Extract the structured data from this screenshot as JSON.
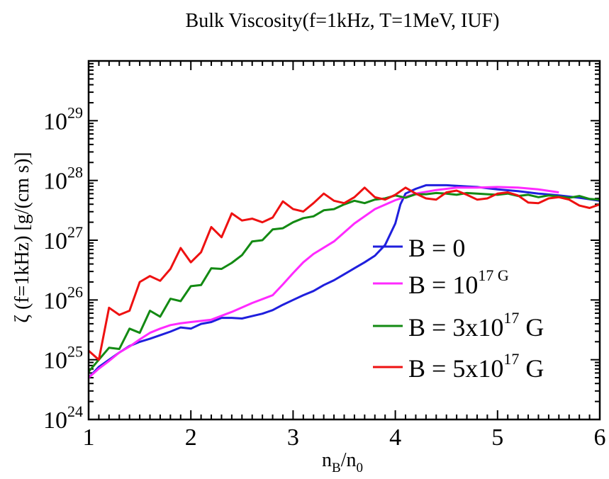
{
  "chart_data": {
    "type": "line",
    "title": "Bulk Viscosity(f=1kHz, T=1MeV, IUF)",
    "xlabel": {
      "main": "n",
      "sub1": "B",
      "slash": "/n",
      "sub2": "0"
    },
    "ylabel": "ζ (f=1kHz) [g/(cm s)]",
    "xlim": [
      1,
      6
    ],
    "ylim_log10": [
      24,
      30
    ],
    "yscale": "log",
    "x_ticks": [
      {
        "value": 1,
        "label": "1"
      },
      {
        "value": 2,
        "label": "2"
      },
      {
        "value": 3,
        "label": "3"
      },
      {
        "value": 4,
        "label": "4"
      },
      {
        "value": 5,
        "label": "5"
      },
      {
        "value": 6,
        "label": "6"
      }
    ],
    "y_ticks": [
      {
        "exp": 24,
        "base": "10",
        "sup": "24"
      },
      {
        "exp": 25,
        "base": "10",
        "sup": "25"
      },
      {
        "exp": 26,
        "base": "10",
        "sup": "26"
      },
      {
        "exp": 27,
        "base": "10",
        "sup": "27"
      },
      {
        "exp": 28,
        "base": "10",
        "sup": "28"
      },
      {
        "exp": 29,
        "base": "10",
        "sup": "29"
      }
    ],
    "legend": {
      "placement": "lower-right",
      "entries": [
        {
          "series": 0,
          "prefix": "B = 0",
          "sup": "",
          "suffix": ""
        },
        {
          "series": 1,
          "prefix": "B = 10",
          "sup": "17 G",
          "suffix": ""
        },
        {
          "series": 2,
          "prefix": "B = 3x10",
          "sup": "17",
          "suffix": " G"
        },
        {
          "series": 3,
          "prefix": "B = 5x10",
          "sup": "17",
          "suffix": " G"
        }
      ]
    },
    "series": [
      {
        "name": "B = 0",
        "color": "#1f1fdd",
        "x": [
          1.0,
          1.1,
          1.2,
          1.3,
          1.4,
          1.5,
          1.6,
          1.7,
          1.8,
          1.9,
          2.0,
          2.1,
          2.2,
          2.3,
          2.4,
          2.5,
          2.6,
          2.7,
          2.8,
          2.9,
          3.0,
          3.1,
          3.2,
          3.3,
          3.4,
          3.5,
          3.6,
          3.7,
          3.8,
          3.9,
          4.0,
          4.05,
          4.1,
          4.2,
          4.3,
          4.4,
          4.5,
          4.6,
          4.7,
          4.8,
          4.9,
          5.0,
          5.2,
          5.4,
          5.6,
          5.8,
          6.0
        ],
        "log10_y": [
          24.7,
          24.88,
          25.0,
          25.12,
          25.23,
          25.3,
          25.35,
          25.41,
          25.47,
          25.54,
          25.52,
          25.6,
          25.63,
          25.7,
          25.7,
          25.69,
          25.73,
          25.77,
          25.83,
          25.92,
          26.0,
          26.08,
          26.15,
          26.25,
          26.33,
          26.43,
          26.53,
          26.63,
          26.74,
          26.92,
          27.28,
          27.6,
          27.78,
          27.86,
          27.92,
          27.92,
          27.92,
          27.91,
          27.9,
          27.89,
          27.87,
          27.85,
          27.82,
          27.78,
          27.75,
          27.71,
          27.66
        ]
      },
      {
        "name": "B = 10^17 G",
        "color": "#ff2aff",
        "x": [
          1.0,
          1.1,
          1.2,
          1.3,
          1.4,
          1.5,
          1.6,
          1.7,
          1.8,
          1.9,
          2.0,
          2.1,
          2.2,
          2.4,
          2.6,
          2.8,
          2.9,
          3.0,
          3.1,
          3.2,
          3.4,
          3.6,
          3.8,
          4.0,
          4.2,
          4.4,
          4.6,
          4.8,
          5.0,
          5.2,
          5.4,
          5.6
        ],
        "log10_y": [
          24.7,
          24.85,
          24.98,
          25.12,
          25.22,
          25.34,
          25.45,
          25.52,
          25.58,
          25.61,
          25.63,
          25.65,
          25.67,
          25.8,
          25.95,
          26.08,
          26.26,
          26.45,
          26.63,
          26.77,
          26.98,
          27.28,
          27.52,
          27.67,
          27.78,
          27.84,
          27.88,
          27.88,
          27.89,
          27.88,
          27.85,
          27.8
        ]
      },
      {
        "name": "B = 3x10^17 G",
        "color": "#138a13",
        "x": [
          1.0,
          1.1,
          1.2,
          1.3,
          1.4,
          1.5,
          1.6,
          1.7,
          1.8,
          1.9,
          2.0,
          2.1,
          2.2,
          2.3,
          2.4,
          2.5,
          2.6,
          2.7,
          2.8,
          2.9,
          3.0,
          3.1,
          3.2,
          3.3,
          3.4,
          3.5,
          3.6,
          3.7,
          3.8,
          3.9,
          4.0,
          4.1,
          4.2,
          4.3,
          4.4,
          4.5,
          4.6,
          4.7,
          4.8,
          4.9,
          5.0,
          5.1,
          5.2,
          5.3,
          5.4,
          5.5,
          5.6,
          5.7,
          5.8,
          5.9,
          6.0
        ],
        "log10_y": [
          24.8,
          25.0,
          25.2,
          25.18,
          25.52,
          25.45,
          25.82,
          25.72,
          26.02,
          25.98,
          26.23,
          26.25,
          26.53,
          26.52,
          26.62,
          26.75,
          26.98,
          27.0,
          27.18,
          27.2,
          27.3,
          27.37,
          27.4,
          27.5,
          27.52,
          27.6,
          27.66,
          27.62,
          27.68,
          27.7,
          27.75,
          27.71,
          27.77,
          27.77,
          27.79,
          27.78,
          27.76,
          27.79,
          27.78,
          27.77,
          27.76,
          27.78,
          27.74,
          27.76,
          27.72,
          27.75,
          27.73,
          27.71,
          27.74,
          27.69,
          27.68
        ]
      },
      {
        "name": "B = 5x10^17 G",
        "color": "#ee1111",
        "x": [
          1.0,
          1.1,
          1.2,
          1.3,
          1.4,
          1.5,
          1.6,
          1.7,
          1.8,
          1.9,
          2.0,
          2.1,
          2.2,
          2.3,
          2.4,
          2.5,
          2.6,
          2.7,
          2.8,
          2.9,
          3.0,
          3.1,
          3.2,
          3.3,
          3.4,
          3.5,
          3.6,
          3.7,
          3.8,
          3.9,
          4.0,
          4.1,
          4.2,
          4.3,
          4.4,
          4.5,
          4.6,
          4.7,
          4.8,
          4.9,
          5.0,
          5.1,
          5.2,
          5.3,
          5.4,
          5.5,
          5.6,
          5.7,
          5.8,
          5.9,
          6.0
        ],
        "log10_y": [
          25.15,
          25.0,
          25.87,
          25.75,
          25.82,
          26.3,
          26.4,
          26.32,
          26.52,
          26.87,
          26.63,
          26.8,
          27.22,
          27.05,
          27.45,
          27.33,
          27.36,
          27.3,
          27.38,
          27.65,
          27.52,
          27.48,
          27.62,
          27.78,
          27.66,
          27.62,
          27.72,
          27.88,
          27.72,
          27.68,
          27.76,
          27.88,
          27.78,
          27.7,
          27.68,
          27.8,
          27.83,
          27.76,
          27.68,
          27.7,
          27.78,
          27.8,
          27.75,
          27.63,
          27.62,
          27.7,
          27.72,
          27.68,
          27.58,
          27.54,
          27.6
        ]
      }
    ]
  }
}
